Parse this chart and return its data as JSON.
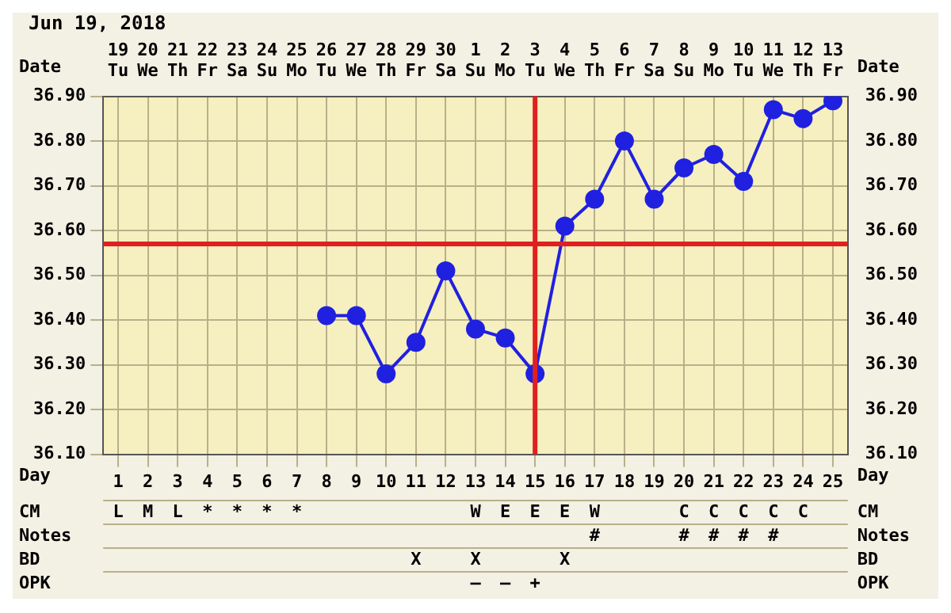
{
  "chart_data": {
    "type": "line",
    "title": "Jun 19, 2018",
    "xlabel": "Day",
    "x2label": "Date",
    "series": [
      {
        "color": "#2020e0",
        "x": [
          8,
          9,
          10,
          11,
          12,
          13,
          14,
          15,
          16,
          17,
          18,
          19,
          20,
          21,
          22,
          23,
          24,
          25
        ],
        "values": [
          36.41,
          36.41,
          36.28,
          36.35,
          36.51,
          36.38,
          36.36,
          36.28,
          36.61,
          36.67,
          36.8,
          36.67,
          36.74,
          36.77,
          36.71,
          36.87,
          36.85,
          36.89
        ]
      }
    ],
    "xlim": [
      0.5,
      25.5
    ],
    "xticks": [
      1,
      2,
      3,
      4,
      5,
      6,
      7,
      8,
      9,
      10,
      11,
      12,
      13,
      14,
      15,
      16,
      17,
      18,
      19,
      20,
      21,
      22,
      23,
      24,
      25
    ],
    "x2lim": [
      "2018-06-18T12:00",
      "2018-07-13T12:00"
    ],
    "x2ticks": [
      {
        "value": "2018-06-19",
        "label": "19 Tu"
      },
      {
        "value": "2018-06-20",
        "label": "20 We"
      },
      {
        "value": "2018-06-21",
        "label": "21 Th"
      },
      {
        "value": "2018-06-22",
        "label": "22 Fr"
      },
      {
        "value": "2018-06-23",
        "label": "23 Sa"
      },
      {
        "value": "2018-06-24",
        "label": "24 Su"
      },
      {
        "value": "2018-06-25",
        "label": "25 Mo"
      },
      {
        "value": "2018-06-26",
        "label": "26 Tu"
      },
      {
        "value": "2018-06-27",
        "label": "27 We"
      },
      {
        "value": "2018-06-28",
        "label": "28 Th"
      },
      {
        "value": "2018-06-29",
        "label": "29 Fr"
      },
      {
        "value": "2018-06-30",
        "label": "30 Sa"
      },
      {
        "value": "2018-07-01",
        "label": "1 Su"
      },
      {
        "value": "2018-07-02",
        "label": "2 Mo"
      },
      {
        "value": "2018-07-03",
        "label": "3 Tu"
      },
      {
        "value": "2018-07-04",
        "label": "4 We"
      },
      {
        "value": "2018-07-05",
        "label": "5 Th"
      },
      {
        "value": "2018-07-06",
        "label": "6 Fr"
      },
      {
        "value": "2018-07-07",
        "label": "7 Sa"
      },
      {
        "value": "2018-07-08",
        "label": "8 Su"
      },
      {
        "value": "2018-07-09",
        "label": "9 Mo"
      },
      {
        "value": "2018-07-10",
        "label": "10 Tu"
      },
      {
        "value": "2018-07-11",
        "label": "11 We"
      },
      {
        "value": "2018-07-12",
        "label": "12 Th"
      },
      {
        "value": "2018-07-13",
        "label": "13 Fr"
      }
    ],
    "ylim": [
      36.1,
      36.9
    ],
    "yticks": [
      {
        "value": 36.1,
        "label": "36.10"
      },
      {
        "value": 36.2,
        "label": "36.20"
      },
      {
        "value": 36.3,
        "label": "36.30"
      },
      {
        "value": 36.4,
        "label": "36.40"
      },
      {
        "value": 36.5,
        "label": "36.50"
      },
      {
        "value": 36.6,
        "label": "36.60"
      },
      {
        "value": 36.7,
        "label": "36.70"
      },
      {
        "value": 36.8,
        "label": "36.80"
      },
      {
        "value": 36.9,
        "label": "36.90"
      }
    ],
    "y2lim": [
      36.1,
      36.9
    ],
    "y2ticks": [
      {
        "value": 36.1,
        "label": "36.10"
      },
      {
        "value": 36.2,
        "label": "36.20"
      },
      {
        "value": 36.3,
        "label": "36.30"
      },
      {
        "value": 36.4,
        "label": "36.40"
      },
      {
        "value": 36.5,
        "label": "36.50"
      },
      {
        "value": 36.6,
        "label": "36.60"
      },
      {
        "value": 36.7,
        "label": "36.70"
      },
      {
        "value": 36.8,
        "label": "36.80"
      },
      {
        "value": 36.9,
        "label": "36.90"
      }
    ],
    "ref_lines": [
      {
        "axis": "x",
        "value": 15,
        "color": "#e02020"
      },
      {
        "axis": "y",
        "value": 36.57,
        "color": "#e02020"
      }
    ],
    "annotations": [
      "CM",
      "L",
      "M",
      "L",
      "*",
      "*",
      "*",
      "*",
      null,
      null,
      null,
      null,
      null,
      "W",
      "E",
      "E",
      "E",
      "W",
      null,
      null,
      "C",
      "C",
      "C",
      "C",
      "C",
      null,
      "Notes",
      null,
      null,
      null,
      null,
      null,
      null,
      null,
      null,
      null,
      null,
      null,
      null,
      null,
      null,
      null,
      null,
      "#",
      null,
      null,
      "#",
      "#",
      "#",
      "#",
      null,
      null,
      "BD",
      null,
      null,
      null,
      null,
      null,
      null,
      null,
      null,
      null,
      null,
      "X",
      null,
      "X",
      null,
      null,
      "X",
      null,
      null,
      null,
      null,
      null,
      null,
      null,
      null,
      null,
      "OPK",
      null,
      null,
      null,
      null,
      null,
      null,
      null,
      null,
      null,
      null,
      null,
      null,
      "–",
      "–",
      "+",
      null,
      null,
      null,
      null,
      null,
      null,
      null,
      null,
      null,
      null
    ],
    "grid": true,
    "marker": "circle",
    "line_style": "solid",
    "legend": false
  }
}
